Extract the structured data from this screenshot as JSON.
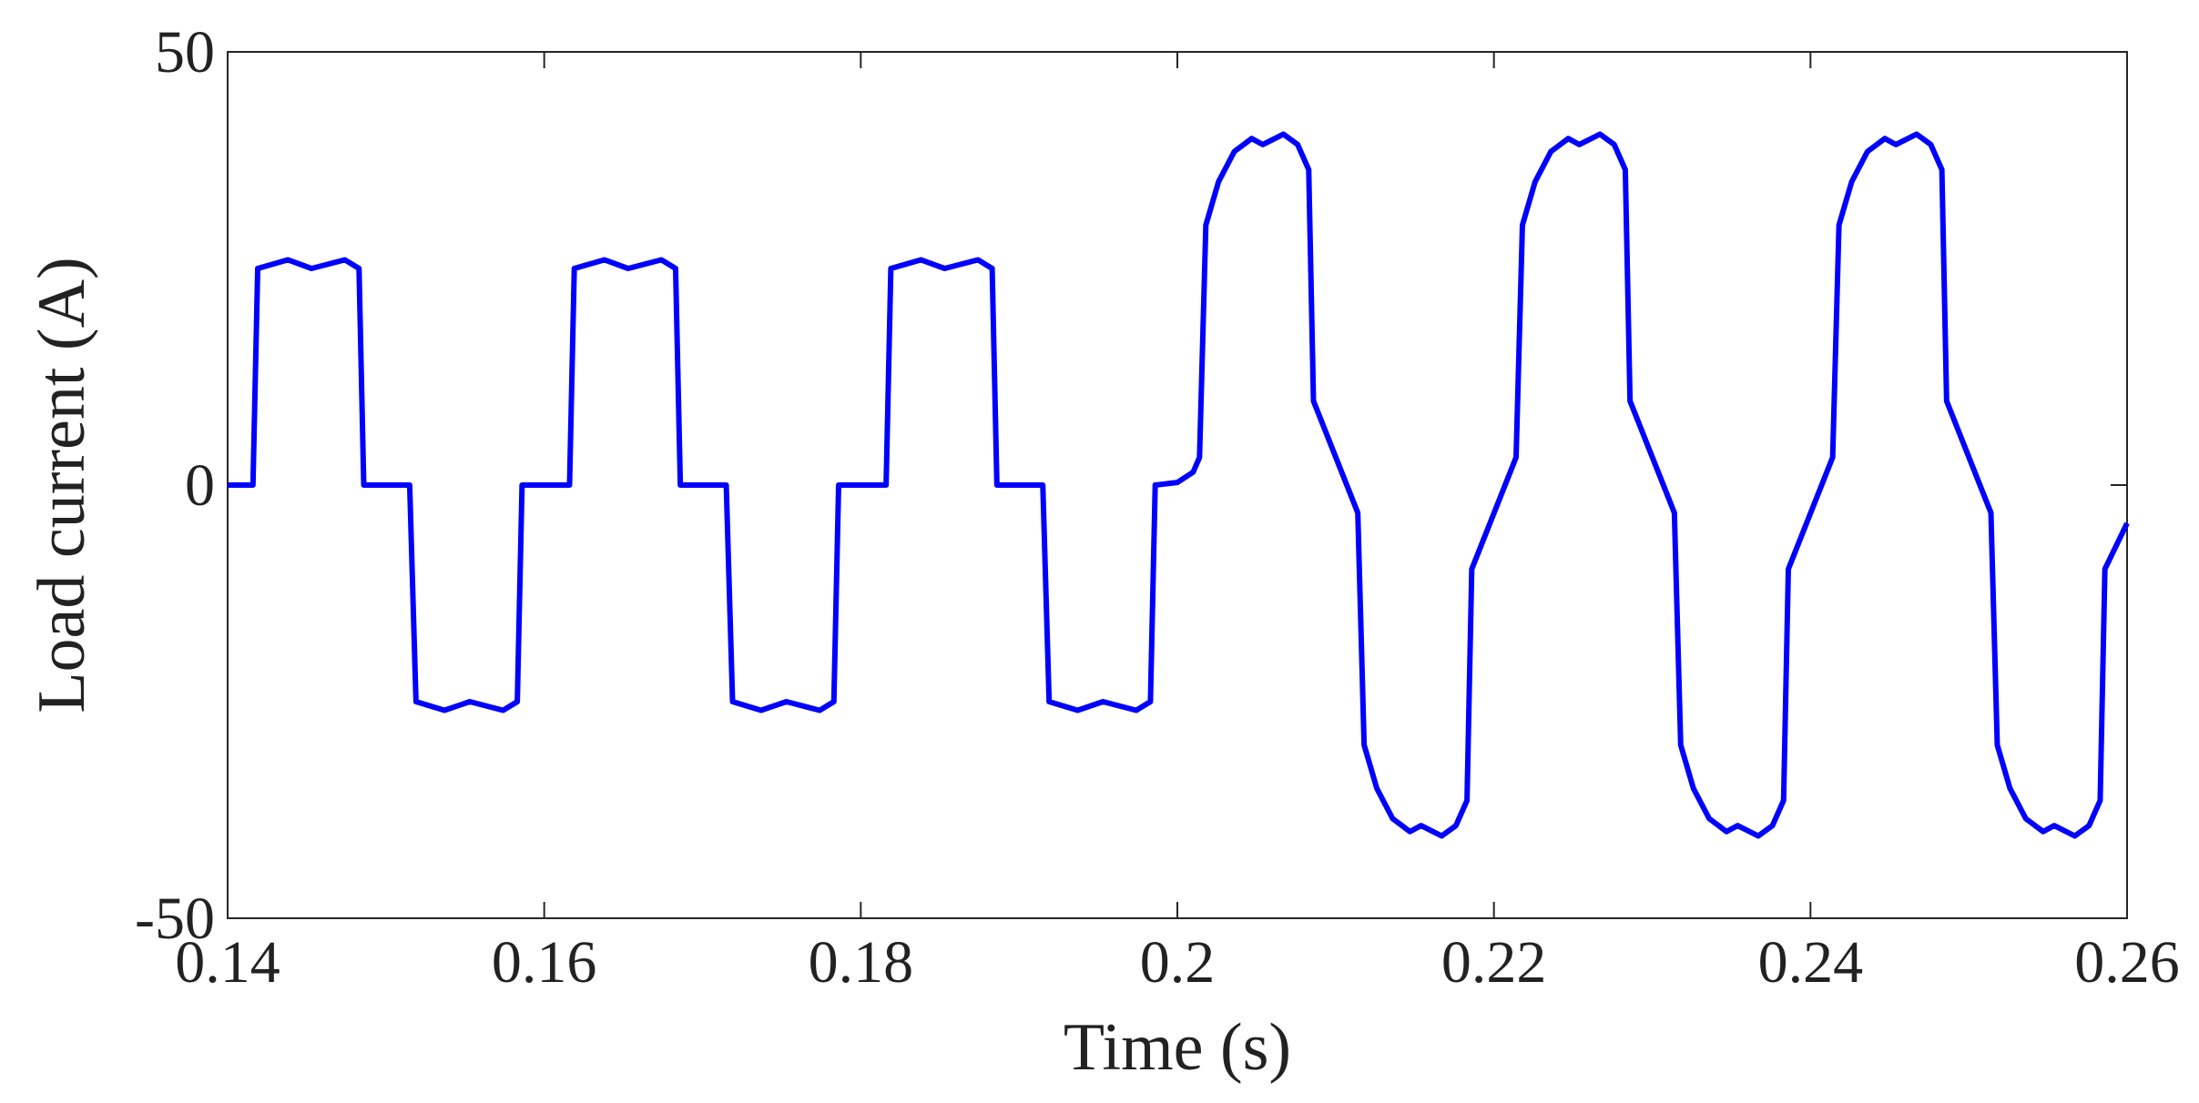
{
  "chart_data": {
    "type": "line",
    "xlabel": "Time (s)",
    "ylabel": "Load current (A)",
    "xlim": [
      0.14,
      0.26
    ],
    "xticks": [
      0.14,
      0.16,
      0.18,
      0.2,
      0.22,
      0.24,
      0.26
    ],
    "ylim": [
      -50,
      50
    ],
    "yticks": [
      -50,
      0,
      50
    ],
    "grid": false,
    "x": [
      0.14,
      0.1416,
      0.1419,
      0.1438,
      0.1453,
      0.1474,
      0.1483,
      0.1486,
      0.1515,
      0.1519,
      0.1537,
      0.1553,
      0.1574,
      0.1583,
      0.1586,
      0.1616,
      0.1619,
      0.1638,
      0.1653,
      0.1674,
      0.1683,
      0.1686,
      0.1715,
      0.1719,
      0.1737,
      0.1753,
      0.1774,
      0.1783,
      0.1786,
      0.1816,
      0.1819,
      0.1838,
      0.1853,
      0.1874,
      0.1883,
      0.1886,
      0.1915,
      0.1919,
      0.1937,
      0.1953,
      0.1974,
      0.1983,
      0.1986,
      0.2,
      0.201,
      0.2014,
      0.2018,
      0.2026,
      0.2036,
      0.2047,
      0.2054,
      0.2067,
      0.2076,
      0.2083,
      0.2086,
      0.2114,
      0.2118,
      0.2126,
      0.2136,
      0.2147,
      0.2154,
      0.2167,
      0.2176,
      0.2183,
      0.2186,
      0.2214,
      0.2218,
      0.2226,
      0.2236,
      0.2247,
      0.2254,
      0.2267,
      0.2276,
      0.2283,
      0.2286,
      0.2314,
      0.2318,
      0.2326,
      0.2336,
      0.2347,
      0.2354,
      0.2367,
      0.2376,
      0.2383,
      0.2386,
      0.2414,
      0.2418,
      0.2426,
      0.2436,
      0.2447,
      0.2454,
      0.2467,
      0.2476,
      0.2483,
      0.2486,
      0.2514,
      0.2518,
      0.2526,
      0.2536,
      0.2547,
      0.2554,
      0.2567,
      0.2576,
      0.2583,
      0.2586,
      0.26
    ],
    "series": [
      {
        "name": "Load current",
        "color": "#0000ff",
        "values": [
          0,
          0,
          25,
          26,
          25,
          26,
          25,
          0,
          0,
          -25,
          -26,
          -25,
          -26,
          -25,
          0,
          0,
          25,
          26,
          25,
          26,
          25,
          0,
          0,
          -25,
          -26,
          -25,
          -26,
          -25,
          0,
          0,
          25,
          26,
          25,
          26,
          25,
          0,
          0,
          -25,
          -26,
          -25,
          -26,
          -25,
          0,
          0.3,
          1.5,
          3.2,
          30,
          35,
          38.5,
          40,
          39.3,
          40.5,
          39.3,
          36.4,
          9.7,
          -3.2,
          -30,
          -35,
          -38.5,
          -40,
          -39.3,
          -40.5,
          -39.3,
          -36.4,
          -9.7,
          3.2,
          30,
          35,
          38.5,
          40,
          39.3,
          40.5,
          39.3,
          36.4,
          9.7,
          -3.2,
          -30,
          -35,
          -38.5,
          -40,
          -39.3,
          -40.5,
          -39.3,
          -36.4,
          -9.7,
          3.2,
          30,
          35,
          38.5,
          40,
          39.3,
          40.5,
          39.3,
          36.4,
          9.7,
          -3.2,
          -30,
          -35,
          -38.5,
          -40,
          -39.3,
          -40.5,
          -39.3,
          -36.4,
          -9.7,
          -4.4
        ]
      }
    ]
  }
}
